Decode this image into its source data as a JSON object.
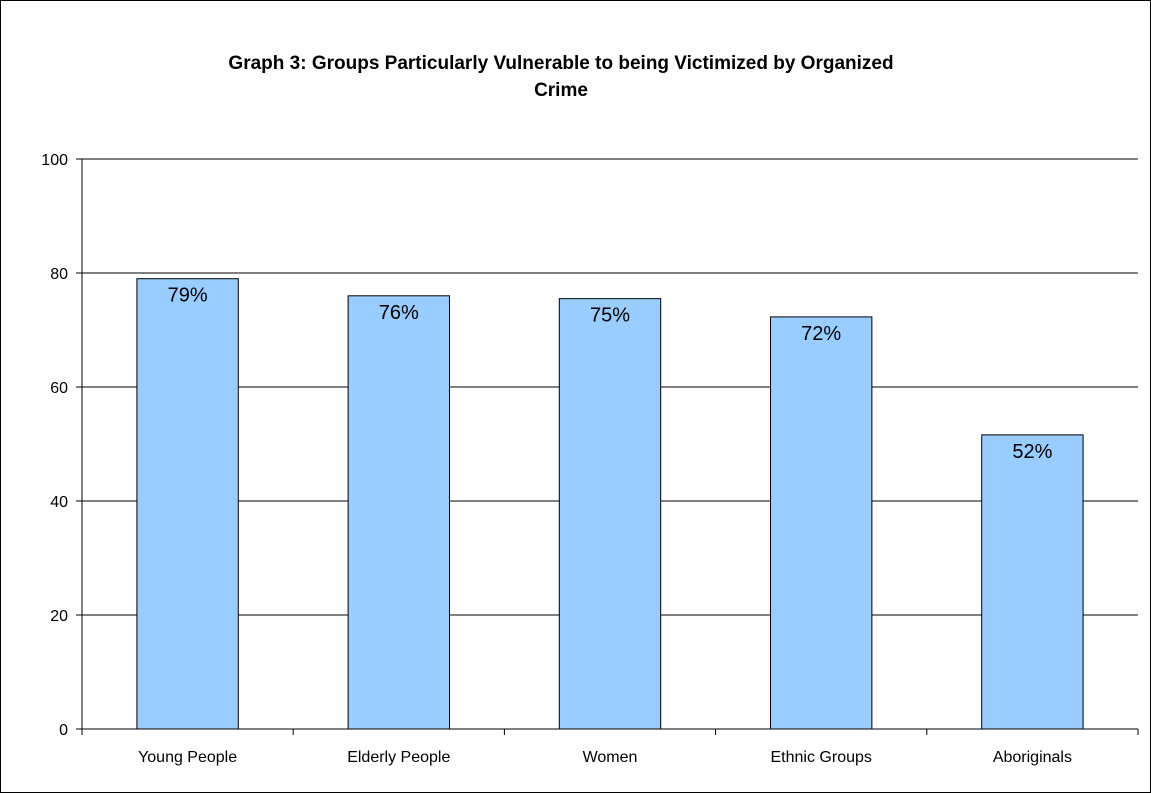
{
  "chart_data": {
    "type": "bar",
    "title": "Graph 3: Groups Particularly Vulnerable to being Victimized by Organized\nCrime",
    "xlabel": "",
    "ylabel": "",
    "ylim": [
      0,
      100
    ],
    "yticks": [
      "0",
      "20",
      "40",
      "60",
      "80",
      "100"
    ],
    "ytick_values": [
      0,
      20,
      40,
      60,
      80,
      100
    ],
    "grid": true,
    "legend": "none",
    "categories": [
      "Young People",
      "Elderly People",
      "Women",
      "Ethnic Groups",
      "Aboriginals"
    ],
    "values": [
      79,
      76,
      75.5,
      72.3,
      51.6
    ],
    "data_labels": [
      "79%",
      "76%",
      "75%",
      "72%",
      "52%"
    ],
    "bar_color": "#99ccff",
    "bar_edge_color": "#000000"
  }
}
